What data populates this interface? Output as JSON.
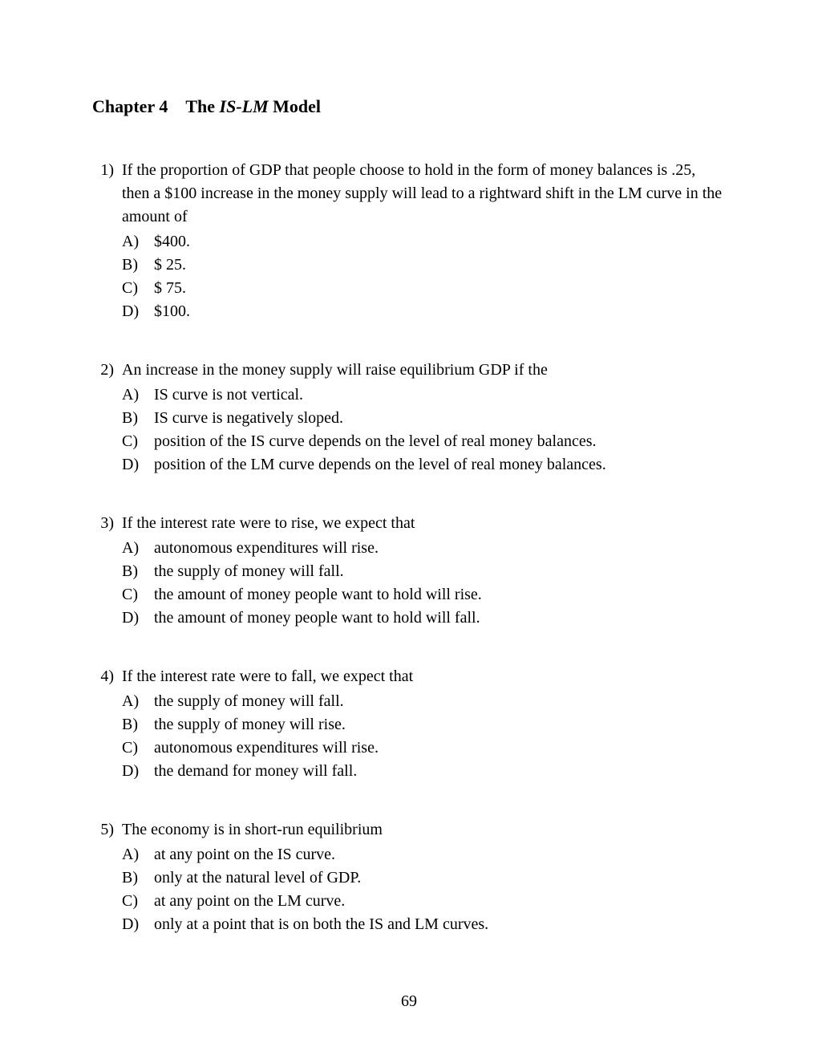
{
  "chapter": {
    "label": "Chapter 4",
    "title_prefix": "The ",
    "title_italic": "IS-LM",
    "title_suffix": " Model"
  },
  "questions": [
    {
      "number": "1)",
      "text": "If the proportion of GDP that people choose to hold in the form of money balances is .25, then a $100 increase in the money supply will lead to a rightward shift in the LM curve in the amount of",
      "options": [
        {
          "letter": "A)",
          "text": "$400."
        },
        {
          "letter": "B)",
          "text": "$ 25."
        },
        {
          "letter": "C)",
          "text": "$ 75."
        },
        {
          "letter": "D)",
          "text": "$100."
        }
      ]
    },
    {
      "number": "2)",
      "text": "An increase in the money supply will raise equilibrium GDP if the",
      "options": [
        {
          "letter": "A)",
          "text": "IS curve is not vertical."
        },
        {
          "letter": "B)",
          "text": "IS curve is negatively sloped."
        },
        {
          "letter": "C)",
          "text": "position of the IS curve depends on the level of real money balances."
        },
        {
          "letter": "D)",
          "text": "position of the LM curve depends on the level of real money balances."
        }
      ]
    },
    {
      "number": "3)",
      "text": "If the interest rate were to rise, we expect that",
      "options": [
        {
          "letter": "A)",
          "text": "autonomous expenditures will rise."
        },
        {
          "letter": "B)",
          "text": "the supply of money will fall."
        },
        {
          "letter": "C)",
          "text": "the amount of money people want to hold will rise."
        },
        {
          "letter": "D)",
          "text": "the amount of money people want to hold will fall."
        }
      ]
    },
    {
      "number": "4)",
      "text": "If the interest rate were to fall, we expect that",
      "options": [
        {
          "letter": "A)",
          "text": "the supply of money will fall."
        },
        {
          "letter": "B)",
          "text": "the supply of money will rise."
        },
        {
          "letter": "C)",
          "text": "autonomous expenditures will rise."
        },
        {
          "letter": "D)",
          "text": "the demand for money will fall."
        }
      ]
    },
    {
      "number": "5)",
      "text": "The economy is in short-run equilibrium",
      "options": [
        {
          "letter": "A)",
          "text": "at any point on the IS curve."
        },
        {
          "letter": "B)",
          "text": "only at the natural level of GDP."
        },
        {
          "letter": "C)",
          "text": "at any point on the LM curve."
        },
        {
          "letter": "D)",
          "text": "only at a point that is on both the IS and LM curves."
        }
      ]
    }
  ],
  "page_number": "69"
}
